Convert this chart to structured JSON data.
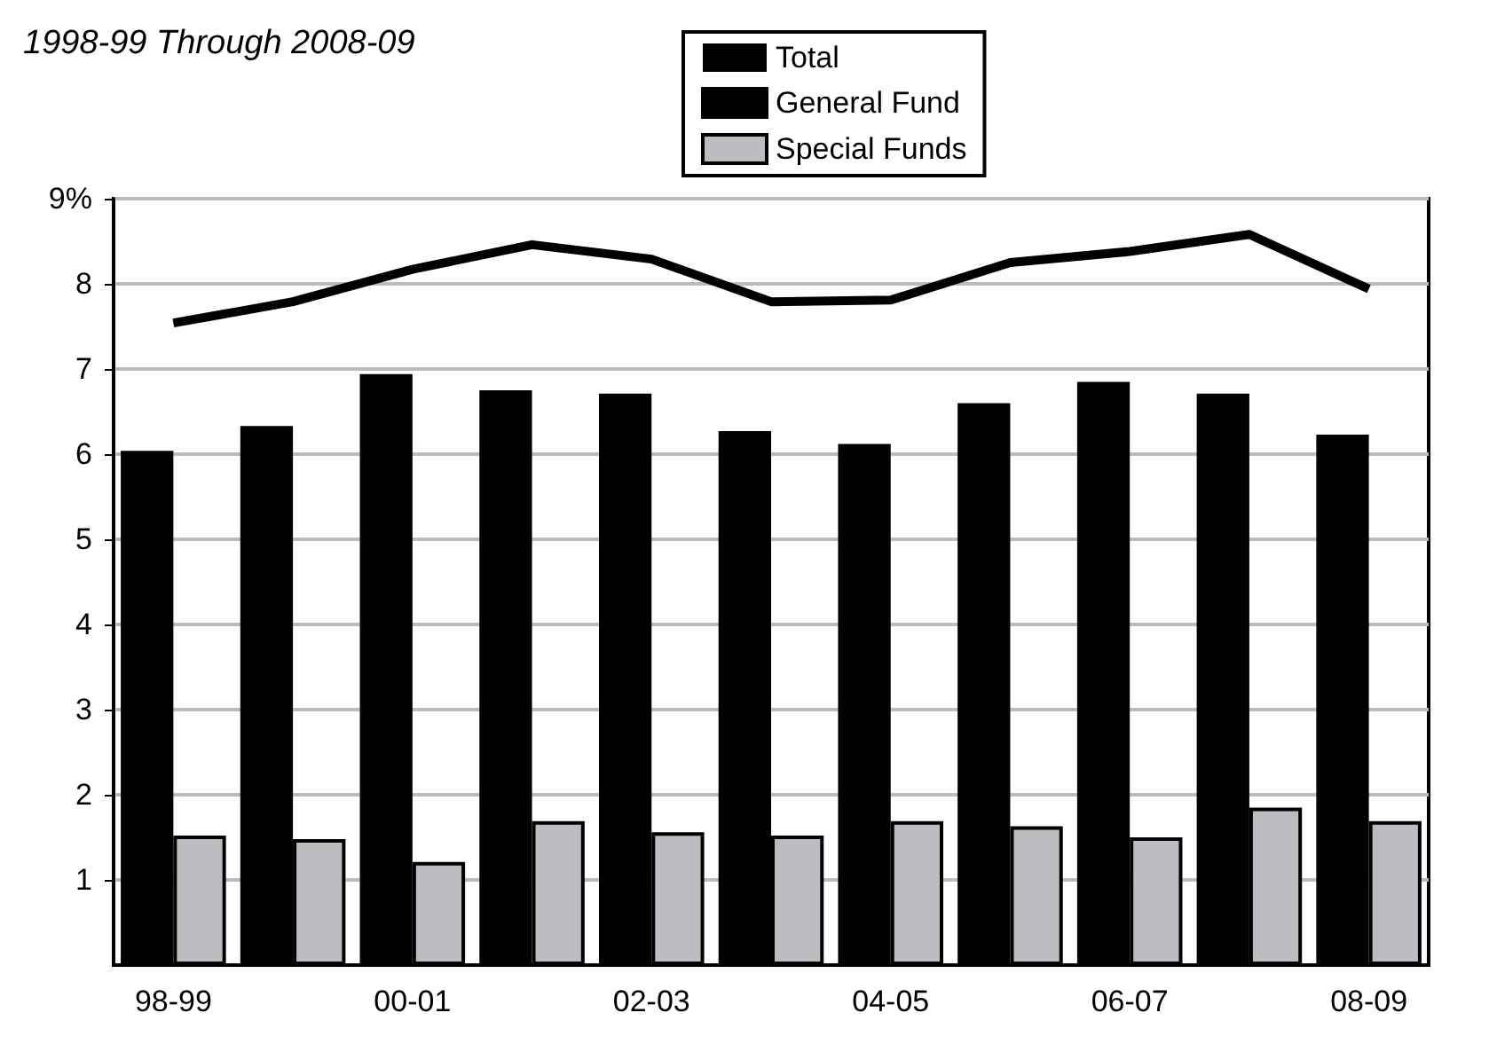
{
  "chart_data": {
    "type": "bar",
    "title": "1998-99 Through 2008-09",
    "categories": [
      "98-99",
      null,
      "00-01",
      null,
      "02-03",
      null,
      "04-05",
      null,
      "06-07",
      null,
      "08-09"
    ],
    "series": [
      {
        "name": "Total",
        "type": "line",
        "color": "#000000",
        "values": [
          7.54,
          7.79,
          8.17,
          8.46,
          8.29,
          7.79,
          7.81,
          8.25,
          8.38,
          8.58,
          7.94
        ]
      },
      {
        "name": "General Fund",
        "color": "#000000",
        "values": [
          6.04,
          6.33,
          6.94,
          6.75,
          6.71,
          6.27,
          6.12,
          6.6,
          6.85,
          6.71,
          6.23
        ]
      },
      {
        "name": "Special Funds",
        "color": "#bcbdc1",
        "values": [
          1.52,
          1.48,
          1.21,
          1.69,
          1.56,
          1.52,
          1.69,
          1.63,
          1.5,
          1.85,
          1.69
        ]
      }
    ],
    "ylim": [
      0,
      9
    ],
    "yticks": [
      1,
      2,
      3,
      4,
      5,
      6,
      7,
      8,
      {
        "value": 9,
        "label": "9%"
      }
    ],
    "grid": "y",
    "legend": "top",
    "marker": "none",
    "line_style": "solid"
  }
}
